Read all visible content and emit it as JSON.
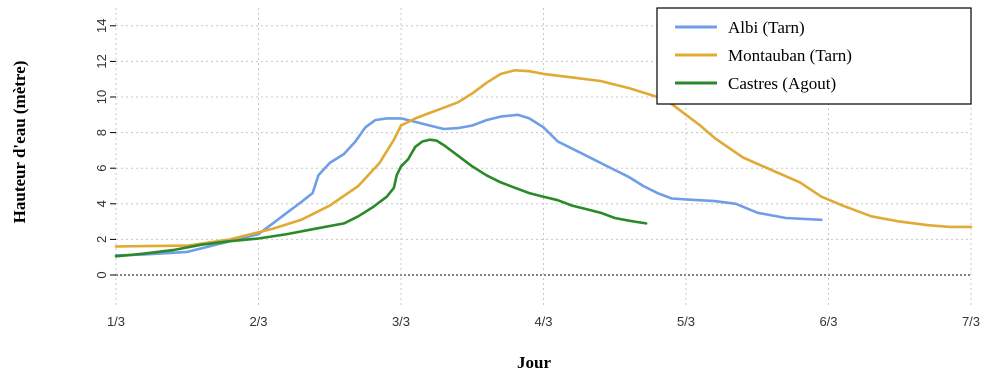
{
  "chart_data": {
    "type": "line",
    "title": "",
    "xlabel": "Jour",
    "ylabel": "Hauteur d'eau (mètre)",
    "xlim": [
      1,
      7
    ],
    "ylim": [
      0,
      15
    ],
    "x_ticks": [
      1,
      2,
      3,
      4,
      5,
      6,
      7
    ],
    "x_tick_labels": [
      "1/3",
      "2/3",
      "3/3",
      "4/3",
      "5/3",
      "6/3",
      "7/3"
    ],
    "y_ticks": [
      0,
      2,
      4,
      6,
      8,
      10,
      12,
      14
    ],
    "y_tick_labels": [
      "0",
      "2",
      "4",
      "6",
      "8",
      "10",
      "12",
      "14"
    ],
    "grid": true,
    "legend_position": "top-right",
    "series": [
      {
        "name": "Albi (Tarn)",
        "color": "#6f9ee6",
        "points": [
          [
            1.0,
            1.1
          ],
          [
            1.2,
            1.15
          ],
          [
            1.5,
            1.3
          ],
          [
            1.8,
            1.9
          ],
          [
            2.0,
            2.3
          ],
          [
            2.1,
            2.9
          ],
          [
            2.2,
            3.5
          ],
          [
            2.3,
            4.1
          ],
          [
            2.38,
            4.6
          ],
          [
            2.42,
            5.6
          ],
          [
            2.5,
            6.3
          ],
          [
            2.6,
            6.8
          ],
          [
            2.68,
            7.5
          ],
          [
            2.75,
            8.3
          ],
          [
            2.82,
            8.7
          ],
          [
            2.9,
            8.8
          ],
          [
            3.0,
            8.8
          ],
          [
            3.1,
            8.6
          ],
          [
            3.2,
            8.4
          ],
          [
            3.3,
            8.2
          ],
          [
            3.4,
            8.25
          ],
          [
            3.5,
            8.4
          ],
          [
            3.6,
            8.7
          ],
          [
            3.7,
            8.9
          ],
          [
            3.82,
            9.0
          ],
          [
            3.9,
            8.8
          ],
          [
            4.0,
            8.3
          ],
          [
            4.1,
            7.5
          ],
          [
            4.2,
            7.1
          ],
          [
            4.3,
            6.7
          ],
          [
            4.4,
            6.3
          ],
          [
            4.5,
            5.9
          ],
          [
            4.6,
            5.5
          ],
          [
            4.7,
            5.0
          ],
          [
            4.8,
            4.6
          ],
          [
            4.9,
            4.3
          ],
          [
            5.0,
            4.25
          ],
          [
            5.2,
            4.15
          ],
          [
            5.35,
            4.0
          ],
          [
            5.5,
            3.5
          ],
          [
            5.7,
            3.2
          ],
          [
            5.95,
            3.1
          ]
        ]
      },
      {
        "name": "Montauban (Tarn)",
        "color": "#e0aa34",
        "points": [
          [
            1.0,
            1.6
          ],
          [
            1.5,
            1.65
          ],
          [
            1.8,
            2.0
          ],
          [
            2.1,
            2.6
          ],
          [
            2.3,
            3.1
          ],
          [
            2.5,
            3.9
          ],
          [
            2.7,
            5.0
          ],
          [
            2.85,
            6.3
          ],
          [
            2.95,
            7.6
          ],
          [
            3.0,
            8.4
          ],
          [
            3.1,
            8.8
          ],
          [
            3.2,
            9.1
          ],
          [
            3.3,
            9.4
          ],
          [
            3.4,
            9.7
          ],
          [
            3.5,
            10.2
          ],
          [
            3.6,
            10.8
          ],
          [
            3.7,
            11.3
          ],
          [
            3.8,
            11.5
          ],
          [
            3.9,
            11.45
          ],
          [
            4.0,
            11.3
          ],
          [
            4.2,
            11.1
          ],
          [
            4.4,
            10.9
          ],
          [
            4.6,
            10.5
          ],
          [
            4.8,
            10.0
          ],
          [
            4.9,
            9.6
          ],
          [
            5.0,
            9.0
          ],
          [
            5.1,
            8.4
          ],
          [
            5.2,
            7.7
          ],
          [
            5.4,
            6.6
          ],
          [
            5.6,
            5.9
          ],
          [
            5.8,
            5.2
          ],
          [
            5.95,
            4.4
          ],
          [
            6.1,
            3.9
          ],
          [
            6.3,
            3.3
          ],
          [
            6.5,
            3.0
          ],
          [
            6.7,
            2.8
          ],
          [
            6.85,
            2.7
          ],
          [
            7.0,
            2.7
          ]
        ]
      },
      {
        "name": "Castres (Agout)",
        "color": "#2a8a2a",
        "points": [
          [
            1.0,
            1.05
          ],
          [
            1.2,
            1.2
          ],
          [
            1.4,
            1.4
          ],
          [
            1.6,
            1.7
          ],
          [
            1.8,
            1.9
          ],
          [
            2.0,
            2.05
          ],
          [
            2.2,
            2.3
          ],
          [
            2.4,
            2.6
          ],
          [
            2.6,
            2.9
          ],
          [
            2.7,
            3.3
          ],
          [
            2.8,
            3.8
          ],
          [
            2.9,
            4.4
          ],
          [
            2.95,
            4.9
          ],
          [
            2.97,
            5.6
          ],
          [
            3.0,
            6.1
          ],
          [
            3.05,
            6.5
          ],
          [
            3.1,
            7.2
          ],
          [
            3.15,
            7.5
          ],
          [
            3.2,
            7.6
          ],
          [
            3.25,
            7.55
          ],
          [
            3.3,
            7.3
          ],
          [
            3.4,
            6.7
          ],
          [
            3.5,
            6.1
          ],
          [
            3.6,
            5.6
          ],
          [
            3.7,
            5.2
          ],
          [
            3.8,
            4.9
          ],
          [
            3.9,
            4.6
          ],
          [
            4.0,
            4.4
          ],
          [
            4.1,
            4.2
          ],
          [
            4.2,
            3.9
          ],
          [
            4.3,
            3.7
          ],
          [
            4.4,
            3.5
          ],
          [
            4.5,
            3.2
          ],
          [
            4.6,
            3.05
          ],
          [
            4.72,
            2.9
          ]
        ]
      }
    ]
  }
}
